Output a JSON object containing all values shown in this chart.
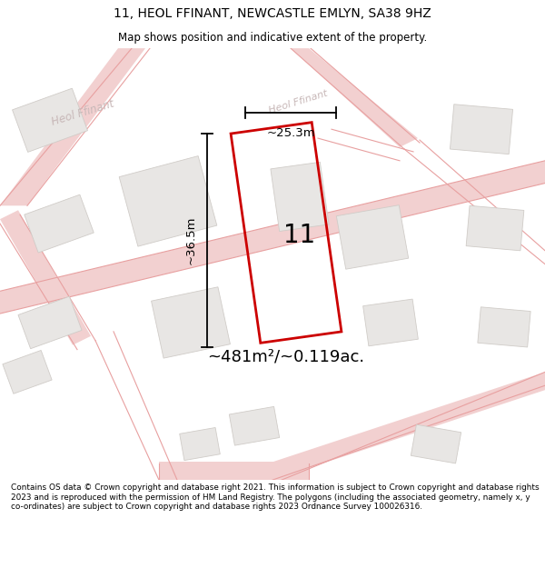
{
  "title": "11, HEOL FFINANT, NEWCASTLE EMLYN, SA38 9HZ",
  "subtitle": "Map shows position and indicative extent of the property.",
  "footer": "Contains OS data © Crown copyright and database right 2021. This information is subject to Crown copyright and database rights 2023 and is reproduced with the permission of HM Land Registry. The polygons (including the associated geometry, namely x, y co-ordinates) are subject to Crown copyright and database rights 2023 Ordnance Survey 100026316.",
  "area_label": "~481m²/~0.119ac.",
  "width_label": "~25.3m",
  "height_label": "~36.5m",
  "number_label": "11",
  "map_bg": "#f9f8f7",
  "road_fill": "#f2d0d0",
  "road_line": "#e8a0a0",
  "building_fill": "#e8e6e4",
  "building_edge": "#d0ccc8",
  "plot_color": "#cc0000",
  "dim_color": "#111111",
  "road_label_color": "#c8b8b8"
}
